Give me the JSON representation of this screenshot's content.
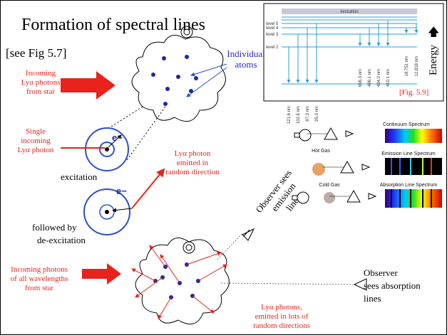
{
  "title": "Formation of spectral lines",
  "reference": "[see Fig 5.7]",
  "incoming_lya": [
    "Incoming",
    "Lyα photons",
    "from star"
  ],
  "individual_atoms": [
    "Individual",
    "atoms"
  ],
  "single_photon": [
    "Single",
    "incoming",
    "Lyα photon"
  ],
  "electron_label_1": "e−",
  "excitation": "excitation",
  "electron_label_2": "e−",
  "emitted_photon": [
    "Lyα photon",
    "emitted in",
    "random direction"
  ],
  "de_excitation": [
    "followed by",
    "de-excitation"
  ],
  "observer_emission": [
    "Observer sees",
    "emission",
    "lines"
  ],
  "incoming_all": [
    "Incoming photons",
    "of all wavelengths",
    "from star"
  ],
  "observer_absorption": [
    "Observer",
    "sees absorption",
    "lines"
  ],
  "lya_many": [
    "Lyα photons,",
    "emitted in lots of",
    "random directions"
  ],
  "energy_figure": {
    "ionization": "ionization",
    "levels": [
      "level 5",
      "level 4",
      "level 3",
      "level 2"
    ],
    "axis": "Energy",
    "lyman": [
      "121.6 nm",
      "102.6 nm",
      "97.3 nm",
      "95.0 nm"
    ],
    "balmer": [
      "656.3 nm",
      "486.1 nm",
      "434.0 nm",
      "410.1 nm"
    ],
    "paschen": [
      "18,751 nm",
      "12,818 nm"
    ],
    "caption": "[Fig. 5.9]"
  },
  "spectra_figure": {
    "continuum": "Continuum Spectrum",
    "hot_gas": "Hot Gas",
    "emission": "Emission Line Spectrum",
    "cold_gas": "Cold Gas",
    "absorption": "Absorption Line Spectrum"
  }
}
